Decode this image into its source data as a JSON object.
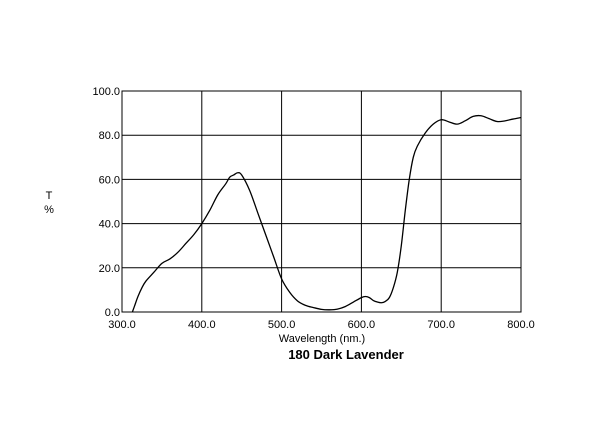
{
  "chart_data": {
    "type": "line",
    "title": "180 Dark Lavender",
    "xlabel": "Wavelength (nm.)",
    "ylabel_top": "T",
    "ylabel_bottom": "%",
    "xlim": [
      300,
      800
    ],
    "ylim": [
      0,
      100
    ],
    "grid": true,
    "x_ticks": [
      300,
      400,
      500,
      600,
      700,
      800
    ],
    "x_tick_labels": [
      "300.0",
      "400.0",
      "500.0",
      "600.0",
      "700.0",
      "800.0"
    ],
    "y_ticks": [
      0,
      20,
      40,
      60,
      80,
      100
    ],
    "y_tick_labels": [
      "0.0",
      "20.0",
      "40.0",
      "60.0",
      "80.0",
      "100.0"
    ],
    "series": [
      {
        "x": [
          313,
          316,
          320,
          325,
          330,
          340,
          350,
          360,
          370,
          380,
          390,
          400,
          410,
          420,
          430,
          435,
          440,
          445,
          450,
          460,
          470,
          480,
          490,
          500,
          510,
          520,
          530,
          540,
          550,
          560,
          570,
          580,
          590,
          600,
          605,
          610,
          615,
          620,
          625,
          630,
          635,
          640,
          645,
          650,
          655,
          660,
          665,
          670,
          680,
          690,
          700,
          710,
          720,
          730,
          740,
          750,
          760,
          770,
          780,
          790,
          800
        ],
        "y": [
          0,
          3,
          7,
          11,
          14,
          18,
          22,
          24,
          27,
          31,
          35,
          40,
          46,
          53,
          58,
          61,
          62,
          63,
          62,
          55,
          45,
          35,
          25,
          15,
          9,
          5,
          3,
          2,
          1.2,
          1.0,
          1.3,
          2.5,
          4.5,
          6.5,
          7.0,
          6.5,
          5.2,
          4.5,
          4.2,
          4.8,
          6.5,
          11,
          18,
          30,
          46,
          60,
          70,
          75,
          81,
          85,
          87,
          86,
          85,
          86.5,
          88.5,
          88.8,
          87.5,
          86.2,
          86.5,
          87.3,
          88
        ]
      }
    ]
  }
}
